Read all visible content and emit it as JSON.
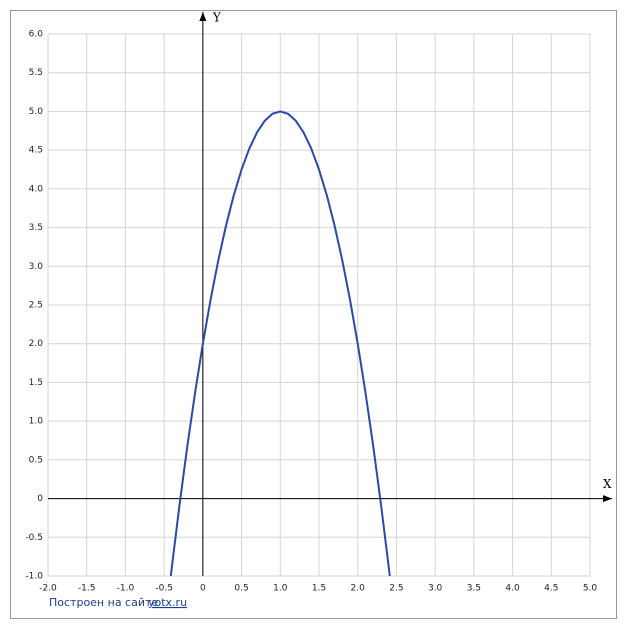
{
  "chart_data": {
    "type": "line",
    "x_label": "X",
    "y_label": "Y",
    "x": [
      -0.414,
      -0.4,
      -0.3,
      -0.2,
      -0.1,
      0,
      0.1,
      0.2,
      0.3,
      0.4,
      0.5,
      0.6,
      0.7,
      0.8,
      0.9,
      1.0,
      1.1,
      1.2,
      1.3,
      1.4,
      1.5,
      1.6,
      1.7,
      1.8,
      1.9,
      2.0,
      2.1,
      2.2,
      2.3,
      2.4,
      2.414
    ],
    "values": [
      -1.0,
      -0.88,
      -0.07,
      0.68,
      1.37,
      2,
      2.57,
      3.08,
      3.53,
      3.92,
      4.25,
      4.52,
      4.73,
      4.88,
      4.97,
      5,
      4.97,
      4.88,
      4.73,
      4.52,
      4.25,
      3.92,
      3.53,
      3.08,
      2.57,
      2,
      1.37,
      0.68,
      -0.07,
      -0.88,
      -1.0
    ],
    "color": "#2a4aa8",
    "xlim": [
      -2,
      5
    ],
    "ylim": [
      -1,
      6
    ],
    "xticks": [
      {
        "value": -2,
        "label": "-2.0"
      },
      -1.5,
      {
        "value": -1,
        "label": "-1.0"
      },
      -0.5,
      0,
      0.5,
      {
        "value": 1,
        "label": "1.0"
      },
      1.5,
      {
        "value": 2,
        "label": "2.0"
      },
      2.5,
      {
        "value": 3,
        "label": "3.0"
      },
      3.5,
      {
        "value": 4,
        "label": "4.0"
      },
      4.5,
      {
        "value": 5,
        "label": "5.0"
      }
    ],
    "yticks": [
      {
        "value": -1,
        "label": "-1.0"
      },
      -0.5,
      0,
      0.5,
      {
        "value": 1,
        "label": "1.0"
      },
      1.5,
      {
        "value": 2,
        "label": "2.0"
      },
      2.5,
      {
        "value": 3,
        "label": "3.0"
      },
      3.5,
      {
        "value": 4,
        "label": "4.0"
      },
      4.5,
      {
        "value": 5,
        "label": "5.0"
      },
      5.5,
      {
        "value": 6,
        "label": "6.0"
      }
    ],
    "grid": true
  },
  "footer": {
    "text": "Построен на сайте",
    "link": "yotx.ru"
  }
}
